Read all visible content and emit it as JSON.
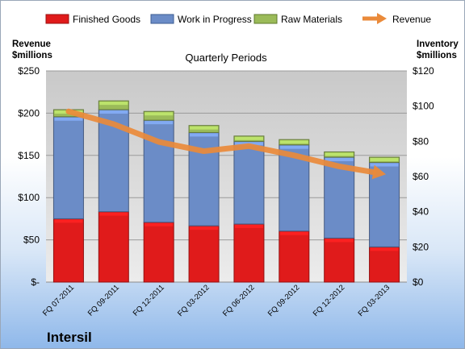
{
  "chart_data": {
    "type": "bar",
    "stacked": true,
    "title": "Quarterly Periods",
    "company": "Intersil",
    "categories": [
      "FQ 07-2011",
      "FQ 09-2011",
      "FQ 12-2011",
      "FQ 03-2012",
      "FQ 06-2012",
      "FQ 09-2012",
      "FQ 12-2012",
      "FQ 03-2013"
    ],
    "series": [
      {
        "name": "Finished Goods",
        "axis": "right",
        "color": "#e01b1b",
        "values": [
          36,
          40,
          34,
          32,
          33,
          29,
          25,
          20
        ]
      },
      {
        "name": "Work in Progress",
        "axis": "right",
        "color": "#6b8cc7",
        "values": [
          58,
          58,
          58,
          53,
          47,
          49,
          46,
          48
        ]
      },
      {
        "name": "Raw Materials",
        "axis": "right",
        "color": "#9bbb59",
        "values": [
          4,
          5,
          5,
          4,
          3,
          3,
          3,
          3
        ]
      },
      {
        "name": "Revenue",
        "axis": "left",
        "type": "line",
        "color": "#ea8a3a",
        "values": [
          202,
          187,
          166,
          155,
          161,
          150,
          137,
          128
        ]
      }
    ],
    "left_axis": {
      "title_line1": "Revenue",
      "title_line2": "$millions",
      "min": 0,
      "max": 250,
      "step": 50,
      "tick_labels": [
        "$-",
        "$50",
        "$100",
        "$150",
        "$200",
        "$250"
      ]
    },
    "right_axis": {
      "title_line1": "Inventory",
      "title_line2": "$millions",
      "min": 0,
      "max": 120,
      "step": 20,
      "tick_labels": [
        "$0",
        "$20",
        "$40",
        "$60",
        "$80",
        "$100",
        "$120"
      ]
    },
    "grid": true,
    "legend_position": "top"
  }
}
